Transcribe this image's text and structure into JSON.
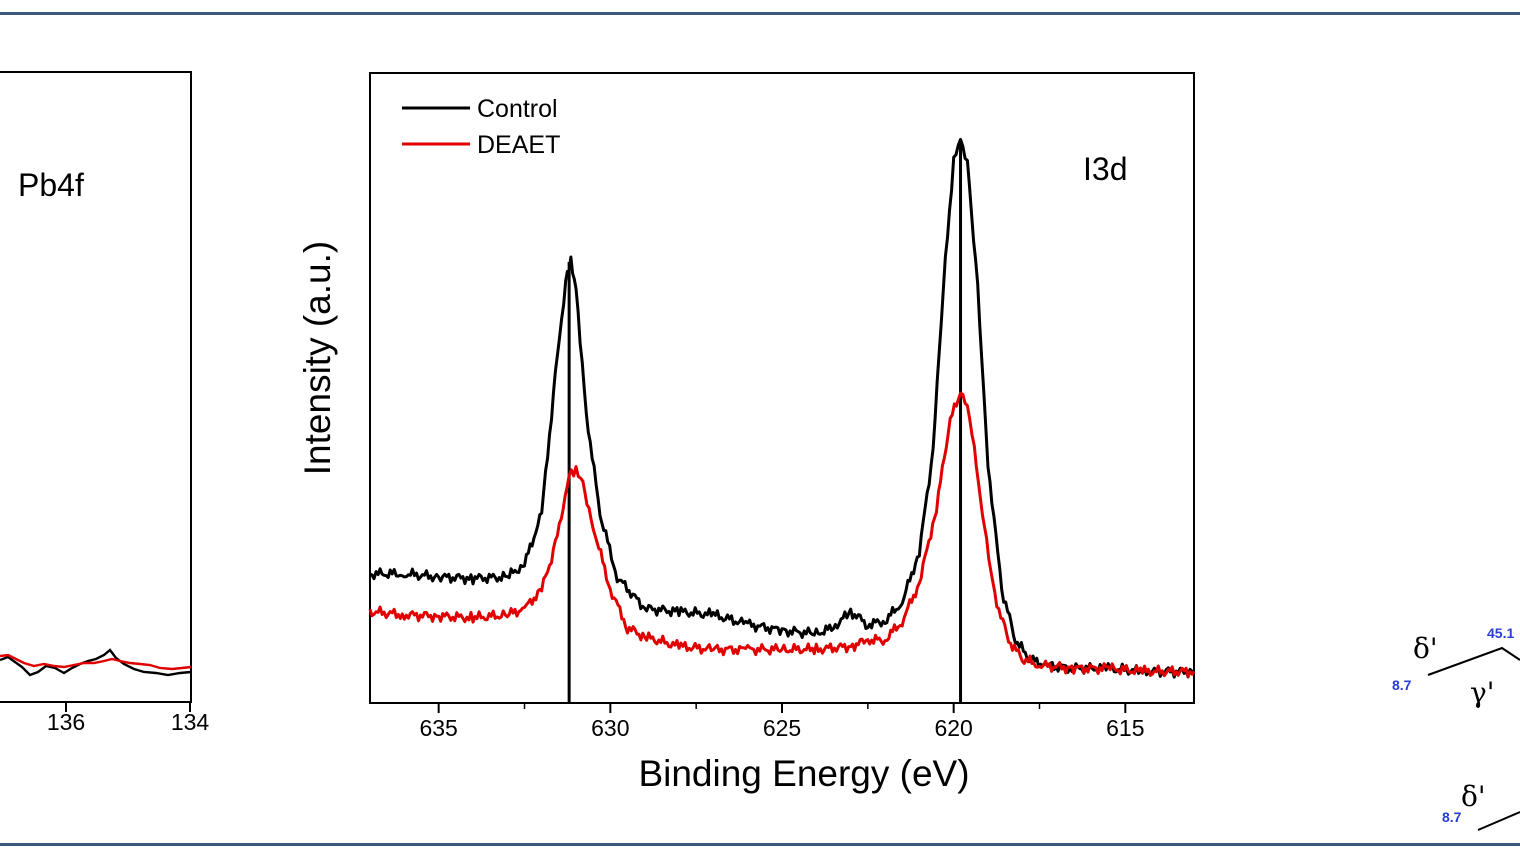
{
  "colors": {
    "rule": "#3b5a7e",
    "control": "#000000",
    "deaet": "#e00000",
    "annotation_blue": "#2a3cd6"
  },
  "left_panel": {
    "label": "Pb4f",
    "x_tick_labels": [
      "136",
      "134"
    ]
  },
  "right_fragment": {
    "greek_labels": [
      "δ'",
      "γ'",
      "δ'"
    ],
    "numbers": [
      "8.7",
      "45.1",
      "8.7"
    ]
  },
  "chart_data": {
    "type": "line",
    "title": "",
    "panel_label": "I3d",
    "xlabel": "Binding Energy (eV)",
    "ylabel": "Intensity (a.u.)",
    "x_reversed": true,
    "xlim": [
      637,
      613
    ],
    "ylim": [
      0,
      1
    ],
    "x_ticks": [
      635,
      630,
      625,
      620,
      615
    ],
    "x_tick_labels": [
      "635",
      "630",
      "625",
      "620",
      "615"
    ],
    "y_ticks_shown": false,
    "legend_position": "top-left",
    "reference_lines_x": [
      631.2,
      619.8
    ],
    "series": [
      {
        "name": "Control",
        "color": "#000000",
        "x": [
          637,
          636,
          635,
          634,
          633,
          632.5,
          632.0,
          631.6,
          631.3,
          631.15,
          631.0,
          630.7,
          630.3,
          629.8,
          629.0,
          628.0,
          627.0,
          626.0,
          625.0,
          624.0,
          623.5,
          623.0,
          622.5,
          622.0,
          621.5,
          621.0,
          620.6,
          620.3,
          620.0,
          619.8,
          619.6,
          619.3,
          619.0,
          618.6,
          618.2,
          617.8,
          617.3,
          616.5,
          615.5,
          614.5,
          613
        ],
        "y": [
          0.205,
          0.205,
          0.2,
          0.198,
          0.2,
          0.22,
          0.3,
          0.52,
          0.67,
          0.7,
          0.66,
          0.46,
          0.3,
          0.2,
          0.15,
          0.145,
          0.14,
          0.125,
          0.115,
          0.11,
          0.12,
          0.145,
          0.125,
          0.13,
          0.16,
          0.24,
          0.4,
          0.66,
          0.86,
          0.89,
          0.86,
          0.66,
          0.38,
          0.18,
          0.1,
          0.07,
          0.06,
          0.055,
          0.055,
          0.05,
          0.05
        ]
      },
      {
        "name": "DEAET",
        "color": "#e00000",
        "x": [
          637,
          636,
          635,
          634,
          633,
          632.5,
          632.0,
          631.6,
          631.2,
          631.0,
          630.8,
          630.5,
          630.0,
          629.5,
          629.0,
          628.0,
          627.0,
          626.0,
          625.0,
          624.0,
          623.0,
          622.5,
          622.0,
          621.5,
          621.0,
          620.5,
          620.1,
          619.8,
          619.6,
          619.4,
          619.1,
          618.8,
          618.4,
          618.0,
          617.5,
          616.5,
          615.5,
          614.5,
          613
        ],
        "y": [
          0.145,
          0.14,
          0.138,
          0.135,
          0.14,
          0.15,
          0.18,
          0.25,
          0.36,
          0.37,
          0.35,
          0.28,
          0.18,
          0.12,
          0.105,
          0.09,
          0.085,
          0.085,
          0.085,
          0.085,
          0.09,
          0.1,
          0.1,
          0.13,
          0.19,
          0.31,
          0.45,
          0.49,
          0.47,
          0.4,
          0.28,
          0.17,
          0.1,
          0.07,
          0.06,
          0.055,
          0.055,
          0.05,
          0.05
        ]
      }
    ]
  }
}
